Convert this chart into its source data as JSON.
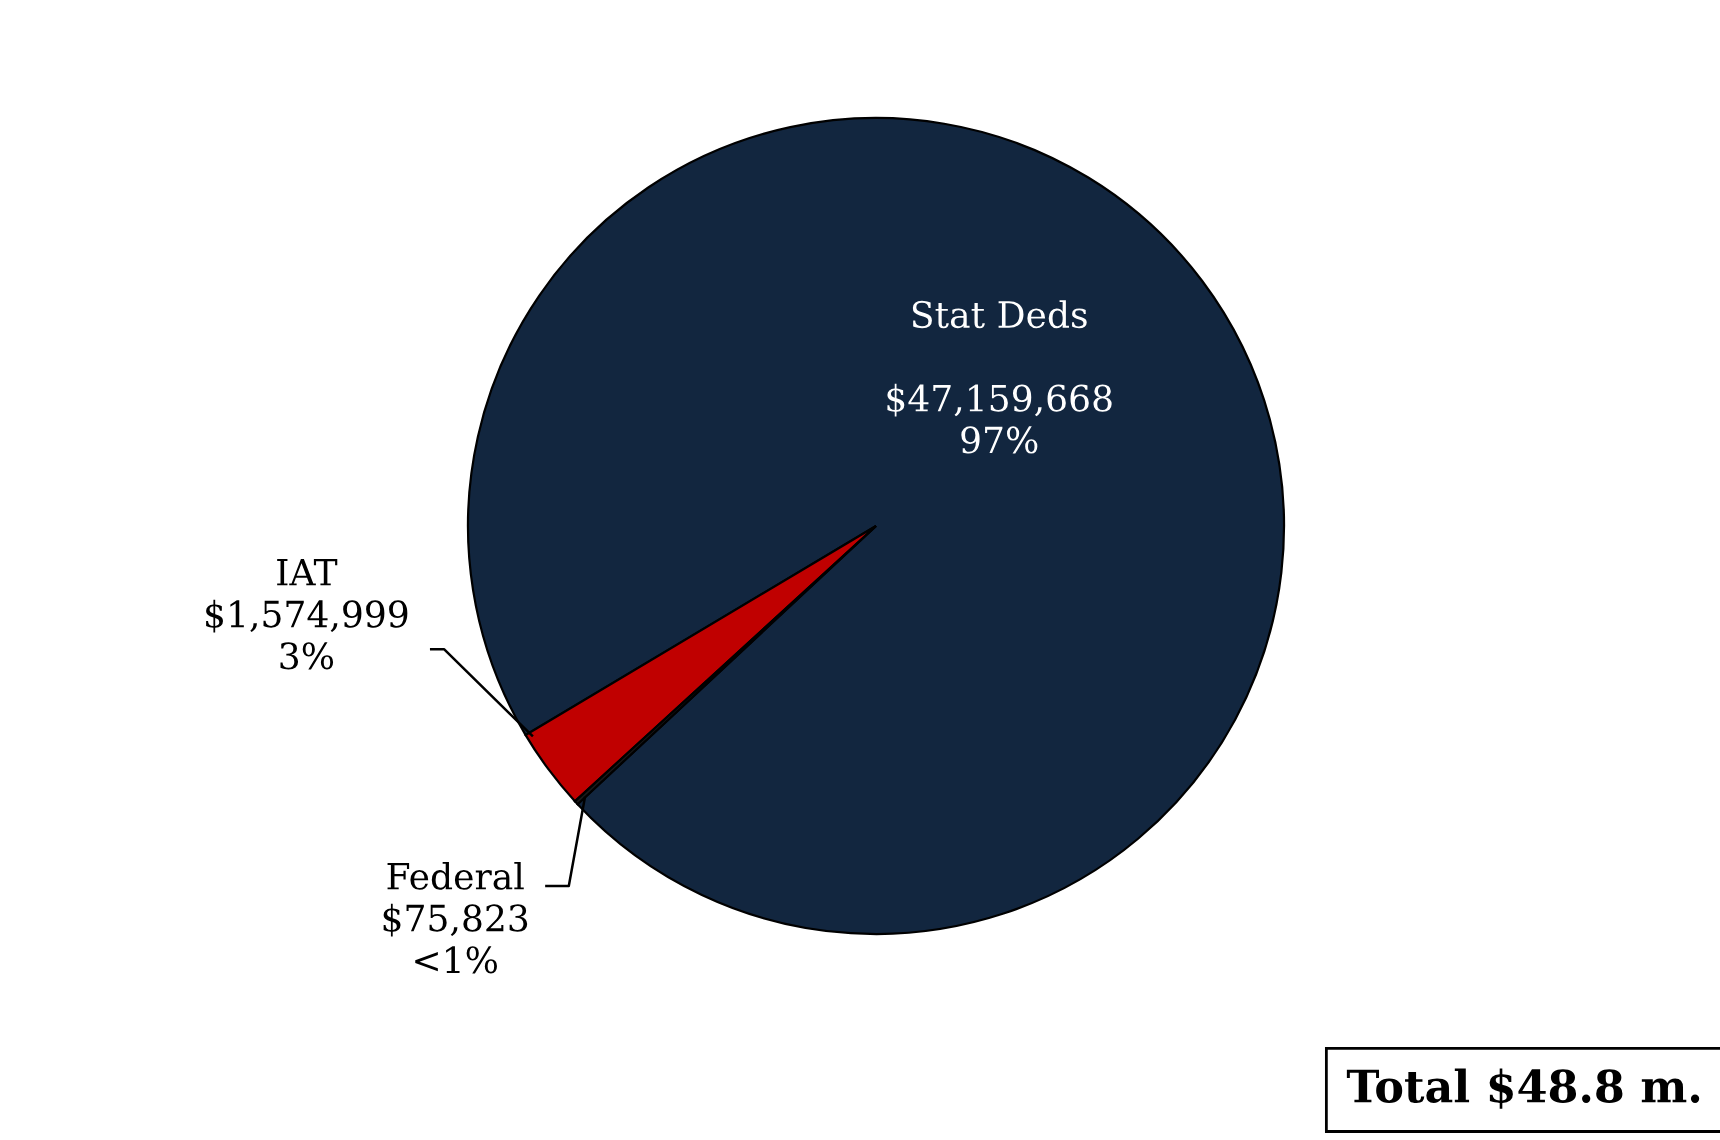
{
  "chart_data": {
    "type": "pie",
    "categories": [
      "Stat Deds",
      "IAT",
      "Federal"
    ],
    "values": [
      47159668,
      1574999,
      75823
    ],
    "value_labels": [
      "$47,159,668\n97%",
      "$1,574,999\n3%",
      "$75,823\n<1%"
    ],
    "colors": [
      "#12263f",
      "#c00000",
      "#1a1a1a"
    ],
    "annotations": [
      "Total $48.8 m."
    ],
    "legend": false
  }
}
